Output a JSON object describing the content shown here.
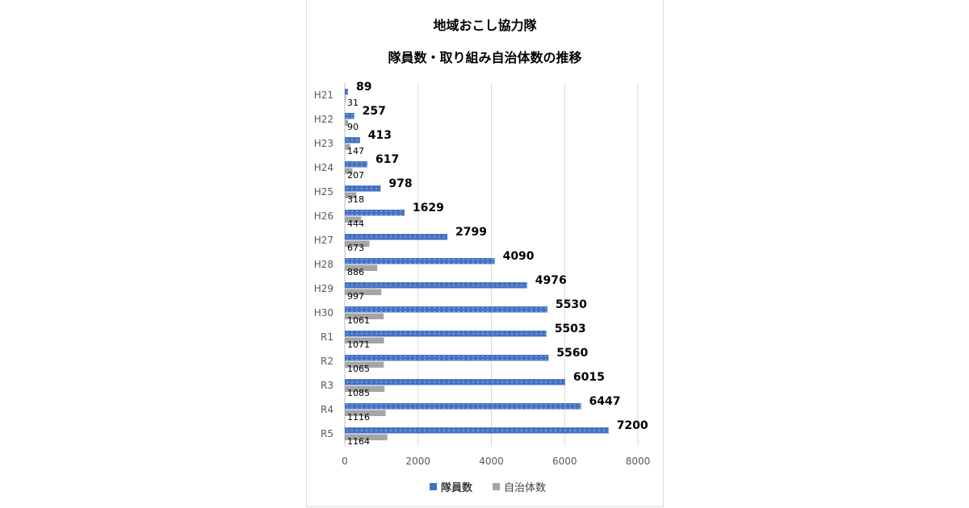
{
  "chart_data": {
    "type": "bar",
    "orientation": "horizontal",
    "title_line1": "地域おこし協力隊",
    "title_line2": "隊員数・取り組み自治体数の推移",
    "categories": [
      "H21",
      "H22",
      "H23",
      "H24",
      "H25",
      "H26",
      "H27",
      "H28",
      "H29",
      "H30",
      "R1",
      "R2",
      "R3",
      "R4",
      "R5"
    ],
    "series": [
      {
        "name": "隊員数",
        "color": "#4472c4",
        "pattern": "dotted",
        "values": [
          89,
          257,
          413,
          617,
          978,
          1629,
          2799,
          4090,
          4976,
          5530,
          5503,
          5560,
          6015,
          6447,
          7200
        ],
        "labels": [
          "89",
          "257",
          "413",
          "617",
          "978",
          "1629",
          "2799",
          "4090",
          "4976",
          "5530",
          "5503",
          "5560",
          "6015",
          "6447",
          "7200"
        ]
      },
      {
        "name": "自治体数",
        "color": "#a5a5a5",
        "values": [
          31,
          90,
          147,
          207,
          318,
          444,
          673,
          886,
          997,
          1061,
          1071,
          1065,
          1085,
          1116,
          1164
        ],
        "labels": [
          "31",
          "90",
          "147",
          "207",
          "318",
          "444",
          "673",
          "886",
          "997",
          "1061",
          "1071",
          "1065",
          "1085",
          "1116",
          "1164"
        ]
      }
    ],
    "xlim": [
      0,
      8000
    ],
    "xticks": [
      "0",
      "2000",
      "4000",
      "6000",
      "8000"
    ],
    "xtick_values": [
      0,
      2000,
      4000,
      6000,
      8000
    ],
    "grid": true,
    "legend_position": "bottom"
  }
}
